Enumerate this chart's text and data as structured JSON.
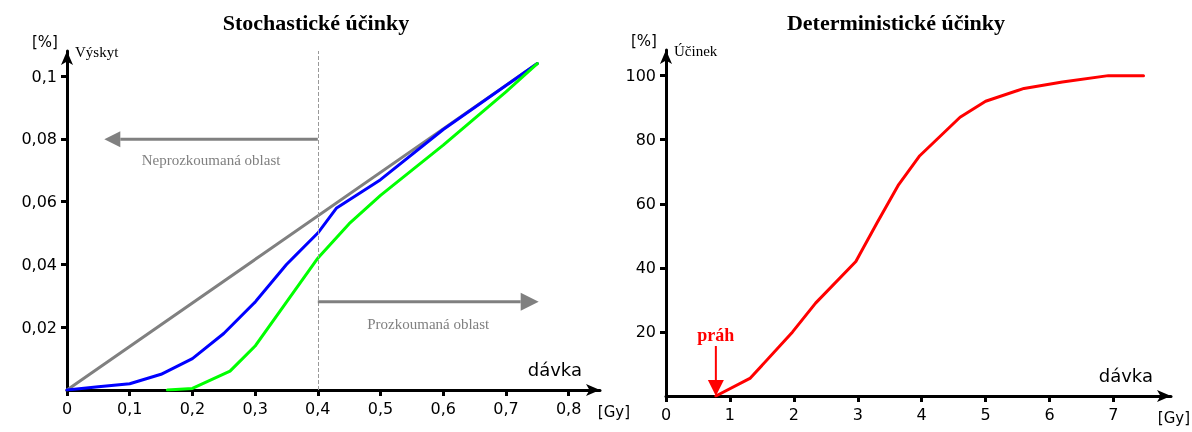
{
  "chart_data": [
    {
      "type": "line",
      "title": "Stochastické účinky",
      "xlabel": "dávka",
      "ylabel": "Výskyt",
      "series": [
        {
          "color": "#808080",
          "x": [
            0,
            0.75
          ],
          "values": [
            0,
            0.104
          ]
        },
        {
          "color": "#0000ff",
          "x": [
            0,
            0.05,
            0.1,
            0.15,
            0.2,
            0.25,
            0.3,
            0.35,
            0.4,
            0.43,
            0.5,
            0.6,
            0.7,
            0.75
          ],
          "values": [
            0,
            0.001,
            0.002,
            0.005,
            0.01,
            0.018,
            0.028,
            0.04,
            0.05,
            0.058,
            0.067,
            0.083,
            0.097,
            0.104
          ]
        },
        {
          "color": "#00ff00",
          "x": [
            0.16,
            0.2,
            0.26,
            0.3,
            0.35,
            0.4,
            0.45,
            0.5,
            0.6,
            0.7,
            0.75
          ],
          "values": [
            0,
            0.0005,
            0.006,
            0.014,
            0.028,
            0.042,
            0.053,
            0.062,
            0.078,
            0.095,
            0.104
          ]
        }
      ],
      "xlim": [
        0,
        0.85
      ],
      "ylim": [
        0,
        0.108
      ],
      "xticks": [
        0,
        {
          "value": 0.1,
          "label": "0,1"
        },
        {
          "value": 0.2,
          "label": "0,2"
        },
        {
          "value": 0.3,
          "label": "0,3"
        },
        {
          "value": 0.4,
          "label": "0,4"
        },
        {
          "value": 0.5,
          "label": "0,5"
        },
        {
          "value": 0.6,
          "label": "0,6"
        },
        {
          "value": 0.7,
          "label": "0,7"
        },
        {
          "value": 0.8,
          "label": "0,8"
        }
      ],
      "yticks": [
        {
          "value": 0.02,
          "label": "0,02"
        },
        {
          "value": 0.04,
          "label": "0,04"
        },
        {
          "value": 0.06,
          "label": "0,06"
        },
        {
          "value": 0.08,
          "label": "0,08"
        },
        {
          "value": 0.1,
          "label": "0,1"
        }
      ],
      "ref_lines": [
        {
          "axis": "x",
          "value": 0.4,
          "color": "#999999",
          "line_style": "dashed"
        }
      ],
      "annotations": [
        "[%]",
        "[Gy]",
        "Neprozkoumaná oblast",
        "Prozkoumaná oblast"
      ],
      "grid": false,
      "marker": "none"
    },
    {
      "type": "line",
      "title": "Deterministické účinky",
      "xlabel": "dávka",
      "ylabel": "Účinek",
      "series": [
        {
          "color": "#ff0000",
          "x": [
            0.78,
            1.32,
            1.98,
            2.34,
            2.97,
            3.3,
            3.64,
            3.97,
            4.6,
            5.0,
            5.6,
            6.2,
            6.92,
            7.47
          ],
          "values": [
            0,
            5.6,
            20,
            29,
            42,
            54,
            66,
            75,
            87,
            92,
            96,
            98,
            100,
            100
          ]
        }
      ],
      "xlim": [
        0,
        7.9
      ],
      "ylim": [
        0,
        108
      ],
      "xticks": [
        0,
        1,
        2,
        3,
        4,
        5,
        6,
        7
      ],
      "yticks": [
        20,
        40,
        60,
        80,
        100
      ],
      "annotations": [
        "[%]",
        "[Gy]",
        {
          "text": "práh",
          "x": 0.78,
          "y": 0
        }
      ],
      "grid": false,
      "marker": "none"
    }
  ]
}
